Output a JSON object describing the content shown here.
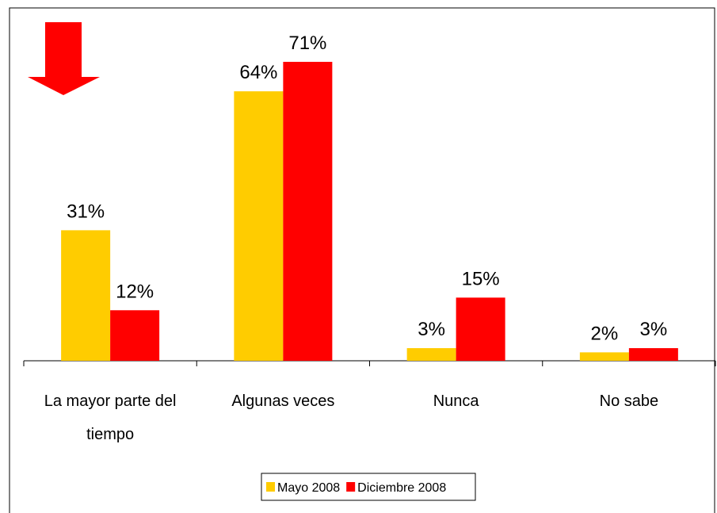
{
  "chart_data": {
    "type": "bar",
    "categories": [
      "La mayor parte del tiempo",
      "Algunas veces",
      "Nunca",
      "No sabe"
    ],
    "series": [
      {
        "name": "Mayo 2008",
        "color": "#ffcc00",
        "values": [
          31,
          64,
          3,
          2
        ],
        "value_labels": [
          "31%",
          "64%",
          "3%",
          "2%"
        ]
      },
      {
        "name": "Diciembre 2008",
        "color": "#ff0000",
        "values": [
          12,
          71,
          15,
          3
        ],
        "value_labels": [
          "12%",
          "71%",
          "15%",
          "3%"
        ]
      }
    ],
    "legend": "bottom"
  }
}
